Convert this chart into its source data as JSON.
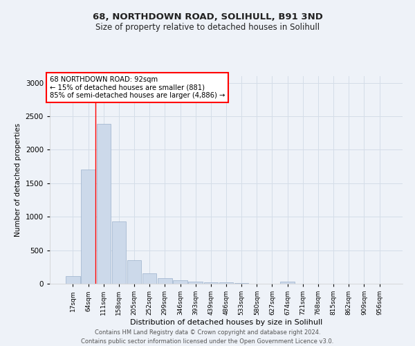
{
  "title_line1": "68, NORTHDOWN ROAD, SOLIHULL, B91 3ND",
  "title_line2": "Size of property relative to detached houses in Solihull",
  "xlabel": "Distribution of detached houses by size in Solihull",
  "ylabel": "Number of detached properties",
  "categories": [
    "17sqm",
    "64sqm",
    "111sqm",
    "158sqm",
    "205sqm",
    "252sqm",
    "299sqm",
    "346sqm",
    "393sqm",
    "439sqm",
    "486sqm",
    "533sqm",
    "580sqm",
    "627sqm",
    "674sqm",
    "721sqm",
    "768sqm",
    "815sqm",
    "862sqm",
    "909sqm",
    "956sqm"
  ],
  "bar_values": [
    110,
    1700,
    2390,
    930,
    350,
    150,
    80,
    55,
    35,
    25,
    25,
    10,
    5,
    5,
    30,
    5,
    5,
    5,
    5,
    5,
    5
  ],
  "bar_color": "#ccd9ea",
  "bar_edge_color": "#9ab0cc",
  "grid_color": "#d4dde8",
  "annotation_text_line1": "68 NORTHDOWN ROAD: 92sqm",
  "annotation_text_line2": "← 15% of detached houses are smaller (881)",
  "annotation_text_line3": "85% of semi-detached houses are larger (4,886) →",
  "red_line_x": 1.48,
  "ylim": [
    0,
    3100
  ],
  "yticks": [
    0,
    500,
    1000,
    1500,
    2000,
    2500,
    3000
  ],
  "footer_line1": "Contains HM Land Registry data © Crown copyright and database right 2024.",
  "footer_line2": "Contains public sector information licensed under the Open Government Licence v3.0.",
  "bg_color": "#eef2f8",
  "plot_bg_color": "#eef2f8"
}
